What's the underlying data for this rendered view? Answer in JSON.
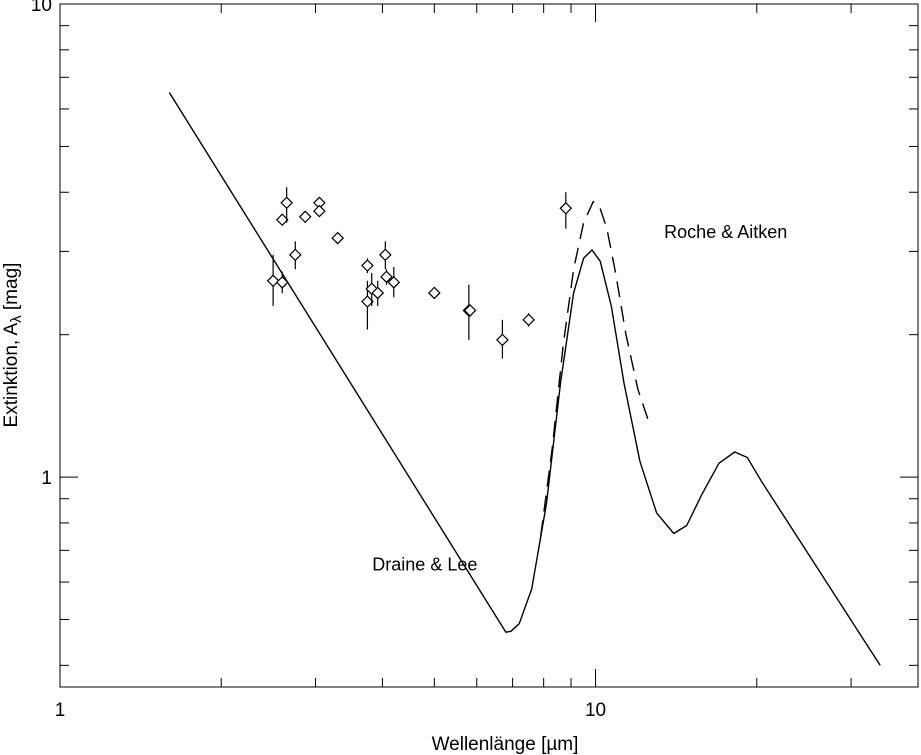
{
  "chart_data": {
    "type": "line",
    "xlabel": "Wellenlänge [µm]",
    "ylabel_main": "Extinktion, A",
    "ylabel_sub": "λ",
    "ylabel_unit": " [mag]",
    "x_scale": "log",
    "y_scale": "log",
    "xlim": [
      1,
      40
    ],
    "ylim": [
      0.36,
      10
    ],
    "x_tick_labels": [
      {
        "value": 1,
        "label": "1"
      },
      {
        "value": 10,
        "label": "10"
      }
    ],
    "y_tick_labels": [
      {
        "value": 1,
        "label": "1"
      },
      {
        "value": 10,
        "label": "10"
      }
    ],
    "grid": false,
    "series": [
      {
        "name": "Draine & Lee",
        "style": "solid",
        "points": [
          [
            1.6,
            6.5
          ],
          [
            6.8,
            0.47
          ],
          [
            6.95,
            0.472
          ],
          [
            7.2,
            0.49
          ],
          [
            7.6,
            0.58
          ],
          [
            8.1,
            0.88
          ],
          [
            8.6,
            1.58
          ],
          [
            9.1,
            2.45
          ],
          [
            9.5,
            2.9
          ],
          [
            9.85,
            3.02
          ],
          [
            10.2,
            2.86
          ],
          [
            10.7,
            2.3
          ],
          [
            11.3,
            1.58
          ],
          [
            12.1,
            1.08
          ],
          [
            13.0,
            0.84
          ],
          [
            14.0,
            0.76
          ],
          [
            14.8,
            0.79
          ],
          [
            15.8,
            0.92
          ],
          [
            17.0,
            1.07
          ],
          [
            18.2,
            1.13
          ],
          [
            19.2,
            1.1
          ],
          [
            20.4,
            0.98
          ],
          [
            34.0,
            0.4
          ]
        ]
      },
      {
        "name": "Roche & Aitken",
        "style": "dashed",
        "points": [
          [
            7.9,
            0.75
          ],
          [
            8.3,
            1.15
          ],
          [
            8.7,
            1.9
          ],
          [
            9.1,
            2.75
          ],
          [
            9.5,
            3.45
          ],
          [
            9.9,
            3.82
          ],
          [
            10.15,
            3.76
          ],
          [
            10.5,
            3.35
          ],
          [
            10.9,
            2.7
          ],
          [
            11.4,
            2.0
          ],
          [
            12.0,
            1.53
          ],
          [
            12.6,
            1.3
          ]
        ]
      },
      {
        "name": "data",
        "style": "markers",
        "points": [
          {
            "x": 2.5,
            "y": 2.6,
            "err": [
              2.3,
              2.95
            ]
          },
          {
            "x": 2.6,
            "y": 2.58,
            "err": [
              2.45,
              2.72
            ]
          },
          {
            "x": 2.6,
            "y": 3.5,
            "err": [
              3.4,
              3.6
            ]
          },
          {
            "x": 2.65,
            "y": 3.8,
            "err": [
              3.45,
              4.1
            ]
          },
          {
            "x": 2.75,
            "y": 2.95,
            "err": [
              2.75,
              3.15
            ]
          },
          {
            "x": 2.87,
            "y": 3.55,
            "err": [
              3.45,
              3.65
            ]
          },
          {
            "x": 3.05,
            "y": 3.8,
            "err": [
              3.7,
              3.9
            ]
          },
          {
            "x": 3.05,
            "y": 3.65,
            "err": [
              3.55,
              3.75
            ]
          },
          {
            "x": 3.3,
            "y": 3.2,
            "err": [
              3.12,
              3.28
            ]
          },
          {
            "x": 3.75,
            "y": 2.8,
            "err": [
              2.7,
              2.9
            ]
          },
          {
            "x": 3.75,
            "y": 2.35,
            "err": [
              2.05,
              2.6
            ]
          },
          {
            "x": 3.82,
            "y": 2.5,
            "err": [
              2.3,
              2.7
            ]
          },
          {
            "x": 3.92,
            "y": 2.45,
            "err": [
              2.3,
              2.6
            ]
          },
          {
            "x": 4.05,
            "y": 2.95,
            "err": [
              2.75,
              3.15
            ]
          },
          {
            "x": 4.07,
            "y": 2.65,
            "err": [
              2.55,
              2.75
            ]
          },
          {
            "x": 4.2,
            "y": 2.58,
            "err": [
              2.4,
              2.78
            ]
          },
          {
            "x": 5.0,
            "y": 2.45,
            "err": [
              2.38,
              2.52
            ]
          },
          {
            "x": 5.8,
            "y": 2.25,
            "err": [
              1.95,
              2.55
            ]
          },
          {
            "x": 5.83,
            "y": 2.25,
            "err": [
              2.2,
              2.3
            ]
          },
          {
            "x": 6.7,
            "y": 1.95,
            "err": [
              1.78,
              2.15
            ]
          },
          {
            "x": 7.5,
            "y": 2.15,
            "err": [
              2.08,
              2.22
            ]
          },
          {
            "x": 8.8,
            "y": 3.7,
            "err": [
              3.35,
              4.0
            ]
          }
        ]
      }
    ],
    "annotations": [
      {
        "text": "Draine & Lee",
        "x": 4.8,
        "y": 0.635
      },
      {
        "text": "Roche & Aitken",
        "x": 17.5,
        "y": 3.2
      }
    ]
  }
}
